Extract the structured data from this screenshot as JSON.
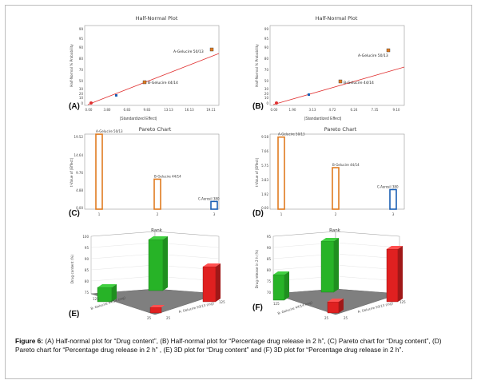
{
  "panels": {
    "A": {
      "label": "(A)",
      "title": "Half-Normal Plot",
      "xlabel": "|Standardized Effect|",
      "ylabel": "Half-Normal % Probability",
      "yticks": [
        "99",
        "95",
        "90",
        "80",
        "70",
        "50",
        "30",
        "20",
        "10",
        "0"
      ],
      "xticks": [
        "0.00",
        "3.80",
        "6.83",
        "9.83",
        "13.13",
        "16.13",
        "19.11"
      ],
      "annotations": [
        "A-Gelucire 50/13",
        "B-Gelucire 44/14"
      ],
      "colors": {
        "line": "#e03030",
        "orange": "#e07b20",
        "blue": "#1a5fb4"
      }
    },
    "B": {
      "label": "(B)",
      "title": "Half-Normal Plot",
      "xlabel": "|Standardized Effect|",
      "ylabel": "Half-Normal % Probability",
      "yticks": [
        "99",
        "95",
        "90",
        "80",
        "70",
        "50",
        "30",
        "20",
        "10",
        "0"
      ],
      "xticks": [
        "0.00",
        "1.90",
        "3.13",
        "4.72",
        "6.24",
        "7.35",
        "9.10"
      ],
      "annotations": [
        "A-Gelucire 50/13",
        "B-Gelucire 44/14"
      ]
    },
    "C": {
      "label": "(C)",
      "title": "Pareto Chart",
      "ylabel": "t-Value of |Effect|",
      "yticks": [
        "19.52",
        "14.64",
        "9.76",
        "4.88",
        "0.00"
      ],
      "xticks": [
        "1",
        "2",
        "3"
      ],
      "bars": [
        "A-Gelucire 50/13",
        "B-Gelucire 44/14",
        "C-Aerosil 380"
      ],
      "chart_data": {
        "type": "bar",
        "categories": [
          "1",
          "2",
          "3"
        ],
        "values": [
          19.5,
          7.8,
          2.0
        ],
        "ylim": [
          0,
          19.52
        ]
      }
    },
    "D": {
      "label": "(D)",
      "title": "Pareto Chart",
      "ylabel": "t-Value of |Effect|",
      "yticks": [
        "9.58",
        "7.66",
        "5.75",
        "3.83",
        "1.92",
        "0.00"
      ],
      "xticks": [
        "1",
        "2",
        "3"
      ],
      "bars": [
        "A-Gelucire 50/13",
        "B-Gelucire 44/14",
        "C-Aerosil 380"
      ],
      "chart_data": {
        "type": "bar",
        "categories": [
          "1",
          "2",
          "3"
        ],
        "values": [
          9.2,
          5.3,
          2.5
        ],
        "ylim": [
          0,
          9.58
        ]
      }
    },
    "E": {
      "label": "(E)",
      "title": "Rank",
      "zlabel": "Drug content (%)",
      "zticks": [
        "100",
        "95",
        "90",
        "85",
        "80",
        "75"
      ],
      "xlabel": "B: Gelucire 44/14 (mg)",
      "ylabel": "A: Gelucire 50/13 (mg)",
      "corner": {
        "left": "125",
        "bottom_left": "25",
        "bottom_right": "25",
        "right": "125"
      }
    },
    "F": {
      "label": "(F)",
      "title": "Rank",
      "zlabel": "Drug release in 2 h (%)",
      "zticks": [
        "95",
        "90",
        "85",
        "80",
        "75",
        "70"
      ],
      "xlabel": "B: Gelucire 44/14 (mg)",
      "ylabel": "A: Gelucire 50/13 (mg)",
      "corner": {
        "left": "125",
        "bottom_left": "25",
        "bottom_right": "25",
        "right": "125"
      }
    }
  },
  "caption": {
    "lead": "Figure 6:",
    "text": "(A) Half-normal plot for “Drug content”, (B) Half-normal plot for “Percentage drug release in 2 h”, (C) Pareto chart for “Drug content”, (D) Pareto chart for “Percentage drug release in 2 h” , (E) 3D plot for “Drug content” and (F) 3D plot for “Percentage drug release in 2 h”."
  }
}
